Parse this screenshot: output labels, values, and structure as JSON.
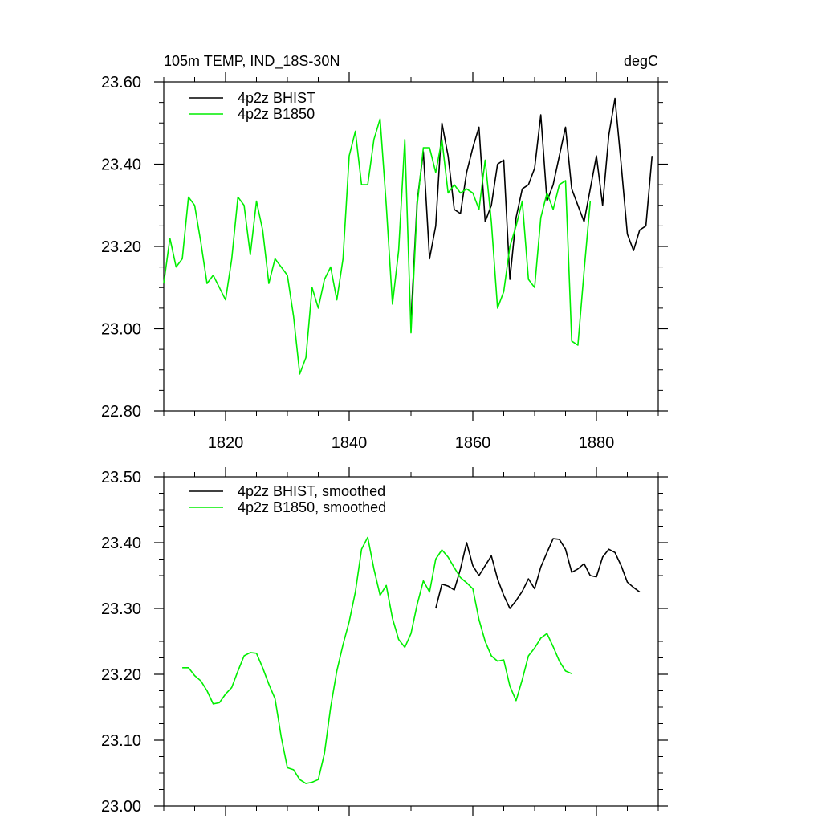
{
  "chart_data": [
    {
      "type": "line",
      "title_left": "105m TEMP, IND_18S-30N",
      "title_right": "degC",
      "xlim": [
        1810,
        1890
      ],
      "ylim": [
        22.8,
        23.6
      ],
      "yticks": [
        {
          "v": 22.8,
          "label": "22.80"
        },
        {
          "v": 23.0,
          "label": "23.00"
        },
        {
          "v": 23.2,
          "label": "23.20"
        },
        {
          "v": 23.4,
          "label": "23.40"
        },
        {
          "v": 23.6,
          "label": "23.60"
        }
      ],
      "yminor_step": 0.05,
      "xticks": [
        {
          "v": 1820,
          "label": "1820"
        },
        {
          "v": 1840,
          "label": "1840"
        },
        {
          "v": 1860,
          "label": "1860"
        },
        {
          "v": 1880,
          "label": "1880"
        }
      ],
      "xminor_step": 5,
      "series": [
        {
          "name": "4p2z BHIST",
          "color": "#000000",
          "x0": 1850,
          "values": [
            23.02,
            23.31,
            23.43,
            23.17,
            23.25,
            23.5,
            23.42,
            23.29,
            23.28,
            23.38,
            23.44,
            23.49,
            23.26,
            23.3,
            23.4,
            23.41,
            23.12,
            23.27,
            23.34,
            23.35,
            23.39,
            23.52,
            23.31,
            23.35,
            23.42,
            23.49,
            23.34,
            23.3,
            23.26,
            23.34,
            23.42,
            23.3,
            23.47,
            23.56,
            23.4,
            23.23,
            23.19,
            23.24,
            23.25,
            23.42
          ]
        },
        {
          "name": "4p2z B1850",
          "color": "#00ee00",
          "x0": 1810,
          "values": [
            23.11,
            23.22,
            23.15,
            23.17,
            23.32,
            23.3,
            23.21,
            23.11,
            23.13,
            23.1,
            23.07,
            23.17,
            23.32,
            23.3,
            23.18,
            23.31,
            23.24,
            23.11,
            23.17,
            23.15,
            23.13,
            23.03,
            22.89,
            22.93,
            23.1,
            23.05,
            23.12,
            23.15,
            23.07,
            23.17,
            23.42,
            23.48,
            23.35,
            23.35,
            23.46,
            23.51,
            23.3,
            23.06,
            23.19,
            23.46,
            22.99,
            23.3,
            23.44,
            23.44,
            23.38,
            23.46,
            23.33,
            23.35,
            23.33,
            23.34,
            23.33,
            23.29,
            23.41,
            23.26,
            23.05,
            23.09,
            23.2,
            23.25,
            23.31,
            23.12,
            23.1,
            23.27,
            23.33,
            23.29,
            23.35,
            23.36,
            22.97,
            22.96,
            23.14,
            23.31
          ]
        }
      ]
    },
    {
      "type": "line",
      "xlim": [
        1810,
        1890
      ],
      "ylim": [
        23.0,
        23.5
      ],
      "yticks": [
        {
          "v": 23.0,
          "label": "23.00"
        },
        {
          "v": 23.1,
          "label": "23.10"
        },
        {
          "v": 23.2,
          "label": "23.20"
        },
        {
          "v": 23.3,
          "label": "23.30"
        },
        {
          "v": 23.4,
          "label": "23.40"
        },
        {
          "v": 23.5,
          "label": "23.50"
        }
      ],
      "yminor_step": 0.025,
      "xticks": [
        {
          "v": 1820,
          "label": ""
        },
        {
          "v": 1840,
          "label": ""
        },
        {
          "v": 1860,
          "label": ""
        },
        {
          "v": 1880,
          "label": ""
        }
      ],
      "xminor_step": 5,
      "series": [
        {
          "name": "4p2z BHIST, smoothed",
          "color": "#000000",
          "x0": 1854,
          "values": [
            23.3,
            23.337,
            23.334,
            23.328,
            23.36,
            23.4,
            23.365,
            23.35,
            23.365,
            23.38,
            23.345,
            23.32,
            23.3,
            23.312,
            23.326,
            23.345,
            23.33,
            23.363,
            23.385,
            23.406,
            23.405,
            23.39,
            23.355,
            23.36,
            23.368,
            23.35,
            23.348,
            23.378,
            23.39,
            23.385,
            23.365,
            23.34,
            23.332,
            23.325
          ]
        },
        {
          "name": "4p2z B1850, smoothed",
          "color": "#00ee00",
          "x0": 1813,
          "values": [
            23.21,
            23.21,
            23.198,
            23.19,
            23.175,
            23.155,
            23.157,
            23.17,
            23.18,
            23.205,
            23.228,
            23.233,
            23.232,
            23.21,
            23.185,
            23.163,
            23.105,
            23.058,
            23.055,
            23.04,
            23.034,
            23.036,
            23.04,
            23.08,
            23.15,
            23.205,
            23.245,
            23.28,
            23.325,
            23.39,
            23.408,
            23.36,
            23.32,
            23.335,
            23.285,
            23.253,
            23.241,
            23.262,
            23.306,
            23.342,
            23.325,
            23.375,
            23.389,
            23.378,
            23.362,
            23.347,
            23.339,
            23.33,
            23.283,
            23.25,
            23.228,
            23.22,
            23.222,
            23.182,
            23.16,
            23.192,
            23.228,
            23.24,
            23.255,
            23.262,
            23.242,
            23.22,
            23.205,
            23.201
          ]
        }
      ]
    }
  ]
}
